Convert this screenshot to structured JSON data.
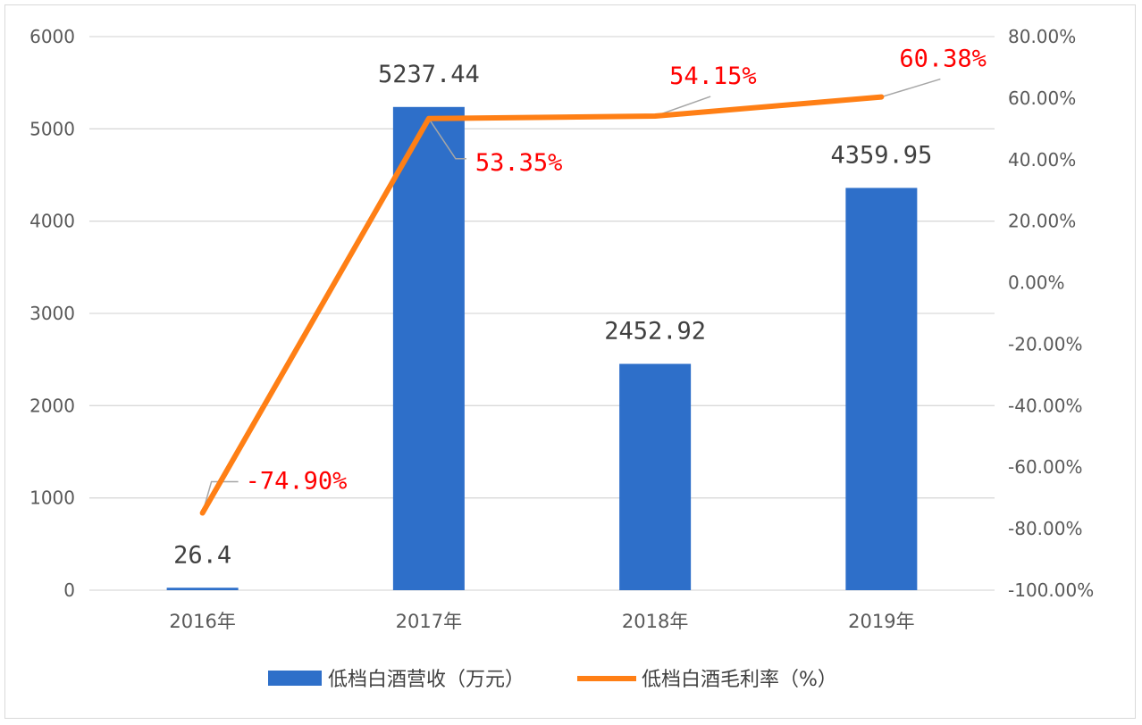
{
  "colors": {
    "bar": "#2e6fc9",
    "line": "#ff7f15",
    "grid": "#d9d9d9",
    "line_label": "#ff0000",
    "leader": "#a6a6a6"
  },
  "chart_data": {
    "type": "bar+line",
    "categories": [
      "2016年",
      "2017年",
      "2018年",
      "2019年"
    ],
    "series": [
      {
        "name": "低档白酒营收（万元）",
        "type": "bar",
        "axis": "left",
        "values": [
          26.4,
          5237.44,
          2452.92,
          4359.95
        ],
        "labels": [
          "26.4",
          "5237.44",
          "2452.92",
          "4359.95"
        ]
      },
      {
        "name": "低档白酒毛利率（%）",
        "type": "line",
        "axis": "right",
        "values": [
          -74.9,
          53.35,
          54.15,
          60.38
        ],
        "labels": [
          "-74.90%",
          "53.35%",
          "54.15%",
          "60.38%"
        ]
      }
    ],
    "left_axis": {
      "ylim": [
        0,
        6000
      ],
      "ticks": [
        0,
        1000,
        2000,
        3000,
        4000,
        5000,
        6000
      ],
      "tick_labels": [
        "0",
        "1000",
        "2000",
        "3000",
        "4000",
        "5000",
        "6000"
      ]
    },
    "right_axis": {
      "ylim": [
        -100,
        80
      ],
      "ticks": [
        -100,
        -80,
        -60,
        -40,
        -20,
        0,
        20,
        40,
        60,
        80
      ],
      "tick_labels": [
        "-100.00%",
        "-80.00%",
        "-60.00%",
        "-40.00%",
        "-20.00%",
        "0.00%",
        "20.00%",
        "40.00%",
        "60.00%",
        "80.00%"
      ]
    },
    "grid": true,
    "legend_position": "bottom",
    "title": "",
    "xlabel": "",
    "ylabel": ""
  }
}
